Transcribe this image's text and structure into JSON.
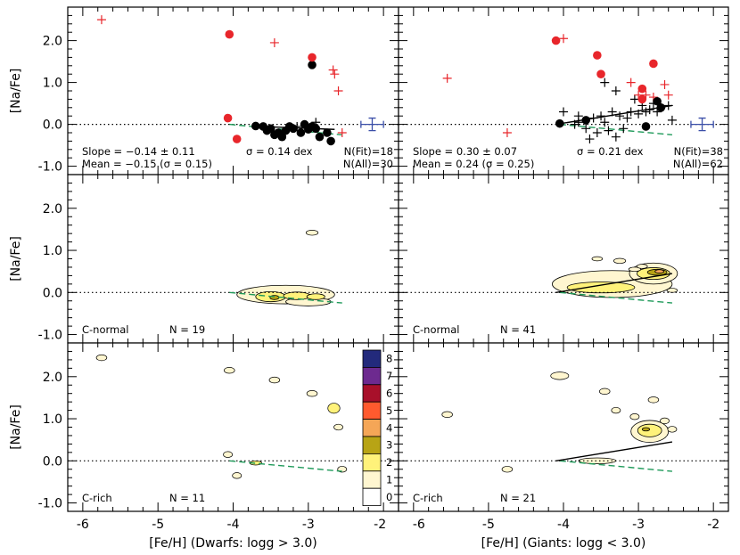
{
  "chart_data": {
    "type": "scatter",
    "layout": "3x2 grid of panels",
    "shared_x_range": [
      -6.2,
      -1.8
    ],
    "shared_y_range": [
      -1.2,
      2.8
    ],
    "x_ticks": [
      "-6",
      "-5",
      "-4",
      "-3",
      "-2"
    ],
    "y_ticks": [
      "-1.0",
      "0.0",
      "1.0",
      "2.0"
    ],
    "ylabel": "[Na/Fe]",
    "xlabels": [
      "[Fe/H] (Dwarfs: logg > 3.0)",
      "[Fe/H] (Giants: logg < 3.0)"
    ],
    "reference_line_y": 0.0,
    "colorbar": {
      "labels": [
        "0",
        "1",
        "2",
        "3",
        "4",
        "5",
        "6",
        "7",
        "8"
      ],
      "colors": [
        "#ffffff",
        "#fff6d0",
        "#fff27a",
        "#b8a415",
        "#f5a657",
        "#ff5a2e",
        "#a8102a",
        "#6d2a8f",
        "#232a7c"
      ]
    },
    "panels": [
      {
        "id": "dwarfs-all",
        "stats": [
          "Slope = −0.14 ± 0.11",
          "Mean = −0.15 (σ = 0.15)",
          "σ = 0.14 dex",
          "N(Fit)=18",
          "N(All)=30"
        ],
        "fit_line": [
          [
            -3.65,
            -0.05
          ],
          [
            -2.65,
            -0.12
          ]
        ],
        "dashed_line": [
          [
            -4.05,
            0.0
          ],
          [
            -2.55,
            -0.25
          ]
        ],
        "cnormal_points": [
          [
            -3.7,
            -0.04
          ],
          [
            -3.6,
            -0.05
          ],
          [
            -3.55,
            -0.15
          ],
          [
            -3.45,
            -0.25
          ],
          [
            -3.4,
            -0.2
          ],
          [
            -3.3,
            -0.15
          ],
          [
            -3.25,
            -0.05
          ],
          [
            -3.2,
            -0.1
          ],
          [
            -3.1,
            -0.2
          ],
          [
            -3.05,
            0.0
          ],
          [
            -2.95,
            -0.05
          ],
          [
            -2.9,
            -0.1
          ],
          [
            -2.85,
            -0.3
          ],
          [
            -2.75,
            -0.2
          ],
          [
            -2.7,
            -0.4
          ],
          [
            -3.5,
            -0.1
          ],
          [
            -3.0,
            -0.12
          ],
          [
            -3.35,
            -0.3
          ],
          [
            -2.95,
            1.42
          ]
        ],
        "cnormal_plus": [
          [
            -2.9,
            0.05
          ],
          [
            -3.15,
            -0.05
          ]
        ],
        "crich_points": [
          [
            -4.05,
            2.15
          ],
          [
            -4.07,
            0.15
          ],
          [
            -3.95,
            -0.35
          ],
          [
            -2.95,
            1.6
          ]
        ],
        "crich_plus": [
          [
            -5.75,
            2.5
          ],
          [
            -3.45,
            1.95
          ],
          [
            -2.67,
            1.3
          ],
          [
            -2.65,
            1.2
          ],
          [
            -2.6,
            0.8
          ],
          [
            -2.55,
            -0.2
          ]
        ],
        "error_bar": {
          "x": -2.15,
          "y": 0.0,
          "dx": 0.15,
          "dy": 0.15
        }
      },
      {
        "id": "giants-all",
        "stats": [
          "Slope = 0.30 ± 0.07",
          "Mean = 0.24 (σ = 0.25)",
          "σ = 0.21 dex",
          "N(Fit)=38",
          "N(All)=62"
        ],
        "fit_line": [
          [
            -4.1,
            0.0
          ],
          [
            -2.55,
            0.45
          ]
        ],
        "dashed_line": [
          [
            -4.05,
            0.0
          ],
          [
            -2.55,
            -0.25
          ]
        ],
        "cnormal_points": [
          [
            -4.05,
            0.02
          ],
          [
            -3.7,
            0.1
          ],
          [
            -2.9,
            -0.05
          ],
          [
            -2.75,
            0.55
          ],
          [
            -2.7,
            0.4
          ]
        ],
        "cnormal_plus": [
          [
            -4.0,
            0.3
          ],
          [
            -3.85,
            0.0
          ],
          [
            -3.8,
            0.05
          ],
          [
            -3.7,
            -0.1
          ],
          [
            -3.6,
            0.15
          ],
          [
            -3.55,
            -0.2
          ],
          [
            -3.5,
            0.2
          ],
          [
            -3.45,
            0.05
          ],
          [
            -3.4,
            -0.15
          ],
          [
            -3.35,
            0.3
          ],
          [
            -3.3,
            0.8
          ],
          [
            -3.25,
            0.2
          ],
          [
            -3.2,
            -0.1
          ],
          [
            -3.15,
            0.15
          ],
          [
            -3.1,
            0.3
          ],
          [
            -3.05,
            0.6
          ],
          [
            -3.0,
            0.25
          ],
          [
            -2.95,
            0.45
          ],
          [
            -2.9,
            0.3
          ],
          [
            -2.85,
            0.35
          ],
          [
            -2.8,
            0.5
          ],
          [
            -2.75,
            0.3
          ],
          [
            -2.7,
            0.4
          ],
          [
            -2.6,
            0.45
          ],
          [
            -2.55,
            0.1
          ],
          [
            -3.65,
            -0.35
          ],
          [
            -3.3,
            -0.3
          ],
          [
            -3.8,
            0.2
          ],
          [
            -3.45,
            1.0
          ]
        ],
        "crich_points": [
          [
            -4.1,
            2.0
          ],
          [
            -3.55,
            1.65
          ],
          [
            -3.5,
            1.2
          ],
          [
            -2.95,
            0.85
          ],
          [
            -2.95,
            0.6
          ],
          [
            -2.8,
            1.45
          ]
        ],
        "crich_plus": [
          [
            -5.55,
            1.1
          ],
          [
            -4.75,
            -0.2
          ],
          [
            -4.0,
            2.05
          ],
          [
            -3.1,
            1.0
          ],
          [
            -3.0,
            0.7
          ],
          [
            -2.9,
            0.7
          ],
          [
            -2.65,
            0.95
          ],
          [
            -2.6,
            0.7
          ],
          [
            -2.8,
            0.65
          ]
        ],
        "error_bar": {
          "x": -2.15,
          "y": 0.0,
          "dx": 0.15,
          "dy": 0.15
        }
      },
      {
        "id": "dwarfs-cnormal",
        "label": "C-normal",
        "n_label": "N = 19",
        "dashed_line": [
          [
            -4.05,
            0.0
          ],
          [
            -2.55,
            -0.25
          ]
        ],
        "blobs": [
          {
            "cx": -2.95,
            "cy": 1.42,
            "rx": 0.08,
            "ry": 0.06,
            "level": 1
          }
        ],
        "contour_regions": [
          {
            "center": [
              -3.3,
              -0.05
            ],
            "rx": 0.65,
            "ry": 0.22,
            "level": 1
          },
          {
            "center": [
              -3.0,
              -0.22
            ],
            "rx": 0.3,
            "ry": 0.1,
            "level": 1
          },
          {
            "center": [
              -3.5,
              -0.1
            ],
            "rx": 0.2,
            "ry": 0.12,
            "level": 2
          },
          {
            "center": [
              -3.15,
              -0.08
            ],
            "rx": 0.18,
            "ry": 0.09,
            "level": 2
          },
          {
            "center": [
              -2.9,
              -0.1
            ],
            "rx": 0.12,
            "ry": 0.07,
            "level": 2
          },
          {
            "center": [
              -3.45,
              -0.12
            ],
            "rx": 0.06,
            "ry": 0.05,
            "level": 3
          }
        ]
      },
      {
        "id": "giants-cnormal",
        "label": "C-normal",
        "n_label": "N = 41",
        "fit_line": [
          [
            -4.1,
            0.0
          ],
          [
            -2.55,
            0.45
          ]
        ],
        "dashed_line": [
          [
            -4.05,
            0.0
          ],
          [
            -2.55,
            -0.25
          ]
        ],
        "blobs": [
          {
            "cx": -3.55,
            "cy": 0.8,
            "rx": 0.07,
            "ry": 0.05,
            "level": 1
          },
          {
            "cx": -3.25,
            "cy": 0.75,
            "rx": 0.08,
            "ry": 0.06,
            "level": 1
          },
          {
            "cx": -3.05,
            "cy": 0.55,
            "rx": 0.08,
            "ry": 0.05,
            "level": 1
          },
          {
            "cx": -2.95,
            "cy": 0.62,
            "rx": 0.07,
            "ry": 0.05,
            "level": 1
          },
          {
            "cx": -2.55,
            "cy": 0.05,
            "rx": 0.07,
            "ry": 0.05,
            "level": 1
          }
        ],
        "contour_regions": [
          {
            "center": [
              -3.35,
              0.2
            ],
            "rx": 0.8,
            "ry": 0.32,
            "level": 1
          },
          {
            "center": [
              -2.8,
              0.45
            ],
            "rx": 0.32,
            "ry": 0.25,
            "level": 1
          },
          {
            "center": [
              -3.5,
              0.12
            ],
            "rx": 0.45,
            "ry": 0.13,
            "level": 2
          },
          {
            "center": [
              -2.8,
              0.45
            ],
            "rx": 0.22,
            "ry": 0.14,
            "level": 2
          },
          {
            "center": [
              -2.75,
              0.48
            ],
            "rx": 0.13,
            "ry": 0.07,
            "level": 3
          },
          {
            "center": [
              -2.72,
              0.5
            ],
            "rx": 0.06,
            "ry": 0.04,
            "level": 4
          }
        ]
      },
      {
        "id": "dwarfs-crich",
        "label": "C-rich",
        "n_label": "N = 11",
        "dashed_line": [
          [
            -4.05,
            0.0
          ],
          [
            -2.55,
            -0.25
          ]
        ],
        "blobs": [
          {
            "cx": -5.75,
            "cy": 2.45,
            "rx": 0.07,
            "ry": 0.07,
            "level": 1
          },
          {
            "cx": -4.05,
            "cy": 2.15,
            "rx": 0.07,
            "ry": 0.07,
            "level": 1
          },
          {
            "cx": -3.45,
            "cy": 1.92,
            "rx": 0.07,
            "ry": 0.07,
            "level": 1
          },
          {
            "cx": -2.95,
            "cy": 1.6,
            "rx": 0.07,
            "ry": 0.07,
            "level": 1
          },
          {
            "cx": -2.6,
            "cy": 0.8,
            "rx": 0.06,
            "ry": 0.07,
            "level": 1
          },
          {
            "cx": -4.07,
            "cy": 0.15,
            "rx": 0.06,
            "ry": 0.07,
            "level": 1
          },
          {
            "cx": -3.95,
            "cy": -0.35,
            "rx": 0.06,
            "ry": 0.07,
            "level": 1
          },
          {
            "cx": -2.55,
            "cy": -0.2,
            "rx": 0.06,
            "ry": 0.07,
            "level": 1
          },
          {
            "cx": -3.7,
            "cy": -0.05,
            "rx": 0.08,
            "ry": 0.05,
            "level": 2
          },
          {
            "cx": -2.66,
            "cy": 1.25,
            "rx": 0.08,
            "ry": 0.12,
            "level": 2
          }
        ]
      },
      {
        "id": "giants-crich",
        "label": "C-rich",
        "n_label": "N = 21",
        "fit_line": [
          [
            -4.1,
            0.0
          ],
          [
            -2.55,
            0.45
          ]
        ],
        "dashed_line": [
          [
            -4.05,
            0.0
          ],
          [
            -2.55,
            -0.25
          ]
        ],
        "blobs": [
          {
            "cx": -5.55,
            "cy": 1.1,
            "rx": 0.07,
            "ry": 0.07,
            "level": 1
          },
          {
            "cx": -4.75,
            "cy": -0.2,
            "rx": 0.07,
            "ry": 0.07,
            "level": 1
          },
          {
            "cx": -4.05,
            "cy": 2.02,
            "rx": 0.12,
            "ry": 0.09,
            "level": 1
          },
          {
            "cx": -3.45,
            "cy": 1.65,
            "rx": 0.07,
            "ry": 0.07,
            "level": 1
          },
          {
            "cx": -3.3,
            "cy": 1.2,
            "rx": 0.06,
            "ry": 0.07,
            "level": 1
          },
          {
            "cx": -3.05,
            "cy": 1.05,
            "rx": 0.06,
            "ry": 0.07,
            "level": 1
          },
          {
            "cx": -2.8,
            "cy": 1.45,
            "rx": 0.07,
            "ry": 0.07,
            "level": 1
          },
          {
            "cx": -2.65,
            "cy": 0.95,
            "rx": 0.06,
            "ry": 0.07,
            "level": 1
          },
          {
            "cx": -3.55,
            "cy": 0.0,
            "rx": 0.25,
            "ry": 0.07,
            "level": 1
          },
          {
            "cx": -2.55,
            "cy": 0.75,
            "rx": 0.06,
            "ry": 0.07,
            "level": 1
          }
        ],
        "contour_regions": [
          {
            "center": [
              -2.85,
              0.7
            ],
            "rx": 0.25,
            "ry": 0.26,
            "level": 1
          },
          {
            "center": [
              -2.85,
              0.72
            ],
            "rx": 0.16,
            "ry": 0.15,
            "level": 2
          },
          {
            "center": [
              -2.9,
              0.75
            ],
            "rx": 0.05,
            "ry": 0.04,
            "level": 3
          }
        ]
      }
    ]
  }
}
